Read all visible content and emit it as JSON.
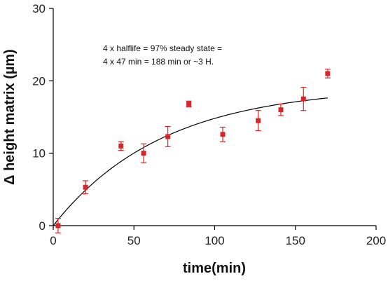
{
  "chart_data": {
    "type": "scatter",
    "title": "",
    "xlabel": "time(min)",
    "ylabel": "Δ height matrix (µm)",
    "xlim": [
      0,
      200
    ],
    "ylim": [
      0,
      30
    ],
    "x_ticks": [
      0,
      50,
      100,
      150,
      200
    ],
    "y_ticks": [
      0,
      10,
      20,
      30
    ],
    "grid": false,
    "legend": "none",
    "marker_color": "#d62728",
    "fit_color": "#000000",
    "series": [
      {
        "points": [
          {
            "x": 3,
            "y": 0.0,
            "err": 1.0
          },
          {
            "x": 20,
            "y": 5.3,
            "err": 0.9
          },
          {
            "x": 42,
            "y": 11.0,
            "err": 0.6
          },
          {
            "x": 56,
            "y": 10.0,
            "err": 1.3
          },
          {
            "x": 71,
            "y": 12.3,
            "err": 1.4
          },
          {
            "x": 84,
            "y": 16.8,
            "err": 0.4
          },
          {
            "x": 105,
            "y": 12.6,
            "err": 1.0
          },
          {
            "x": 127,
            "y": 14.5,
            "err": 1.4
          },
          {
            "x": 141,
            "y": 16.0,
            "err": 0.8
          },
          {
            "x": 155,
            "y": 17.5,
            "err": 1.6
          },
          {
            "x": 170,
            "y": 21.0,
            "err": 0.6
          }
        ]
      }
    ],
    "fit": {
      "model": "exponential-rise",
      "amplitude": 19.2,
      "half_life": 47,
      "x_start": 0,
      "x_end": 170
    },
    "annotations": [
      "4 x halflife = 97% steady state =",
      "4 x 47 min = 188 min or ~3 H."
    ]
  }
}
